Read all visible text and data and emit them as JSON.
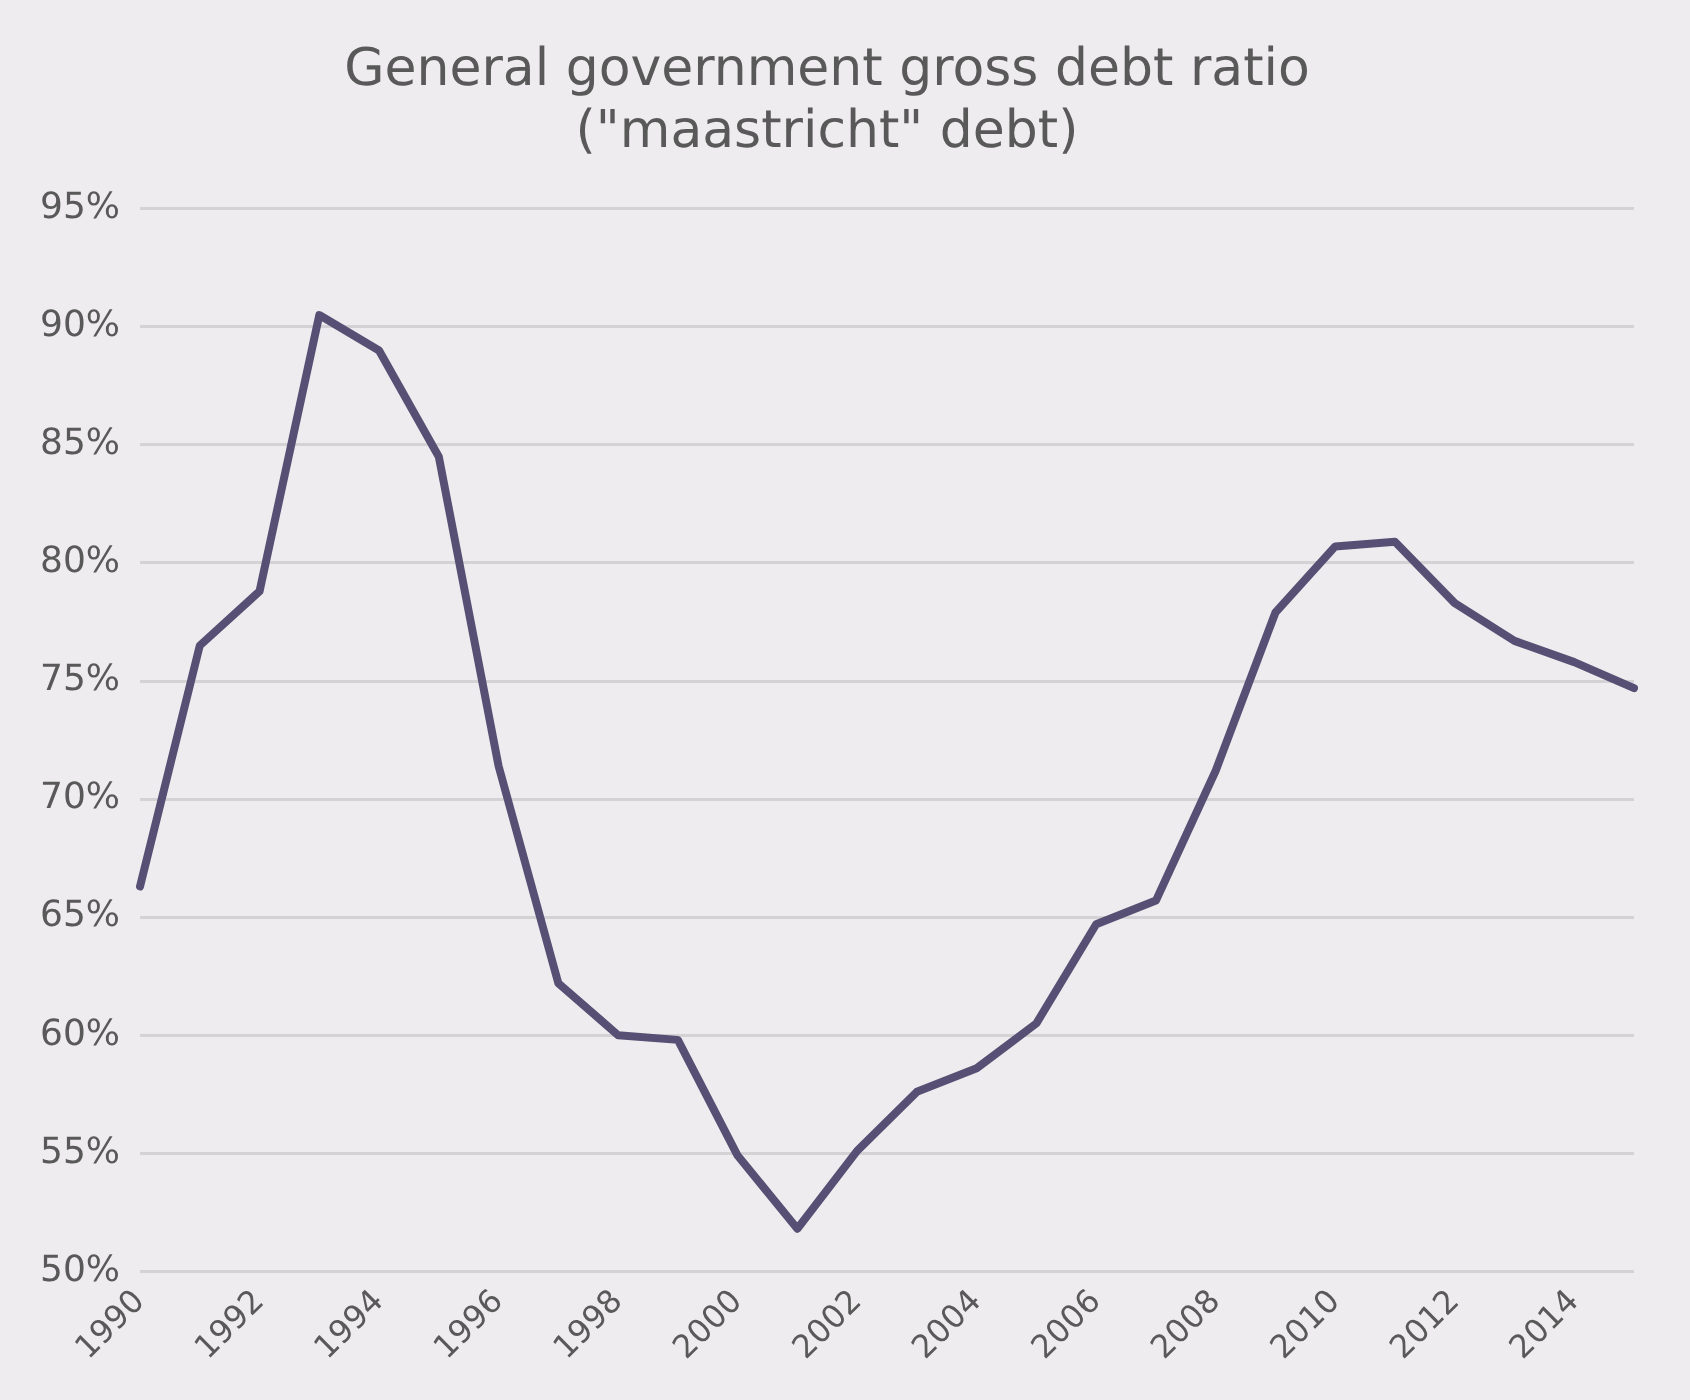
{
  "chart_data": {
    "type": "line",
    "title": [
      "General government gross debt ratio",
      "(\"maastricht\" debt)"
    ],
    "categories": [
      "1990",
      null,
      "1992",
      null,
      "1994",
      null,
      "1996",
      null,
      "1998",
      null,
      "2000",
      null,
      "2002",
      null,
      "2004",
      null,
      "2006",
      null,
      "2008",
      null,
      "2010",
      null,
      "2012",
      null,
      "2014",
      null
    ],
    "series": [
      {
        "color": "#575074",
        "values": [
          66.3,
          76.5,
          78.8,
          90.5,
          89.0,
          84.5,
          71.4,
          62.2,
          60.0,
          59.8,
          54.9,
          51.8,
          55.1,
          57.6,
          58.6,
          60.5,
          64.7,
          65.7,
          71.2,
          77.9,
          80.7,
          80.9,
          78.3,
          76.7,
          75.8,
          74.7
        ]
      }
    ],
    "ylim": [
      50,
      95
    ],
    "yticks": [
      {
        "value": 50,
        "label": "50%"
      },
      {
        "value": 55,
        "label": "55%"
      },
      {
        "value": 60,
        "label": "60%"
      },
      {
        "value": 65,
        "label": "65%"
      },
      {
        "value": 70,
        "label": "70%"
      },
      {
        "value": 75,
        "label": "75%"
      },
      {
        "value": 80,
        "label": "80%"
      },
      {
        "value": 85,
        "label": "85%"
      },
      {
        "value": 90,
        "label": "90%"
      },
      {
        "value": 95,
        "label": "95%"
      }
    ],
    "grid": "y",
    "legend": false,
    "marker": "none",
    "line_style": "solid"
  }
}
